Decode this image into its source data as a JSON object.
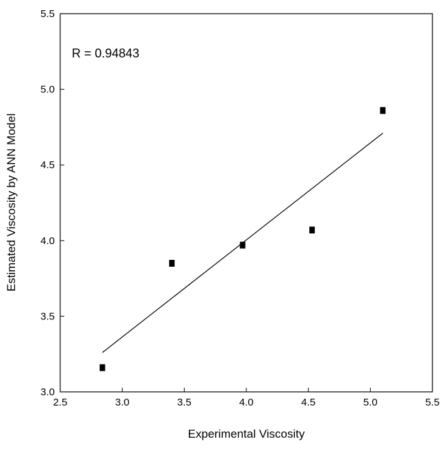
{
  "chart_data": {
    "type": "scatter",
    "x_label": "Experimental Viscosity",
    "y_label": "Estimated Viscosity by ANN Model",
    "annotation": "R = 0.94843",
    "x": [
      2.84,
      3.4,
      3.97,
      4.53,
      5.1
    ],
    "values": [
      3.16,
      3.85,
      3.97,
      4.07,
      4.86
    ],
    "color": "#000000",
    "fit_line": {
      "x": [
        2.84,
        5.1
      ],
      "y": [
        3.26,
        4.71
      ]
    },
    "xlim": [
      2.5,
      5.5
    ],
    "ylim": [
      3.0,
      5.5
    ],
    "xticks": [
      2.5,
      {
        "value": 3,
        "label": "3.0"
      },
      3.5,
      {
        "value": 4,
        "label": "4.0"
      },
      4.5,
      {
        "value": 5,
        "label": "5.0"
      },
      5.5
    ],
    "yticks": [
      {
        "value": 3,
        "label": "3.0"
      },
      3.5,
      {
        "value": 4,
        "label": "4.0"
      },
      4.5,
      {
        "value": 5,
        "label": "5.0"
      },
      5.5
    ]
  }
}
